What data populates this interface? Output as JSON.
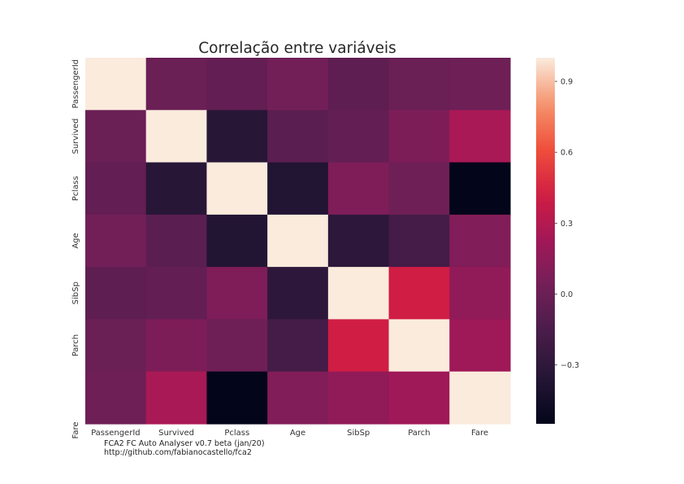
{
  "chart_data": {
    "type": "heatmap",
    "title": "Correlação entre variáveis",
    "rows": [
      "PassengerId",
      "Survived",
      "Pclass",
      "Age",
      "SibSp",
      "Parch",
      "Fare"
    ],
    "columns": [
      "PassengerId",
      "Survived",
      "Pclass",
      "Age",
      "SibSp",
      "Parch",
      "Fare"
    ],
    "values": [
      [
        1.0,
        -0.005,
        -0.035,
        0.037,
        -0.058,
        -0.002,
        0.013
      ],
      [
        -0.005,
        1.0,
        -0.338,
        -0.077,
        -0.035,
        0.082,
        0.257
      ],
      [
        -0.035,
        -0.338,
        1.0,
        -0.369,
        0.083,
        0.018,
        -0.549
      ],
      [
        0.037,
        -0.077,
        -0.369,
        1.0,
        -0.308,
        -0.189,
        0.096
      ],
      [
        -0.058,
        -0.035,
        0.083,
        -0.308,
        1.0,
        0.415,
        0.16
      ],
      [
        -0.002,
        0.082,
        0.018,
        -0.189,
        0.415,
        1.0,
        0.216
      ],
      [
        0.013,
        0.257,
        -0.549,
        0.096,
        0.16,
        0.216,
        1.0
      ]
    ],
    "vmin": -0.549,
    "vmax": 1.0,
    "colormap": "rocket",
    "colorbar_ticks": [
      0.9,
      0.6,
      0.3,
      0.0,
      -0.3
    ],
    "colorbar_tick_labels": [
      "0.9",
      "0.6",
      "0.3",
      "0.0",
      "−0.3"
    ],
    "grid": false
  },
  "footer": {
    "line1": "FCA2 FC Auto Analyser v0.7 beta (jan/20)",
    "line2": "http://github.com/fabianocastello/fca2"
  }
}
